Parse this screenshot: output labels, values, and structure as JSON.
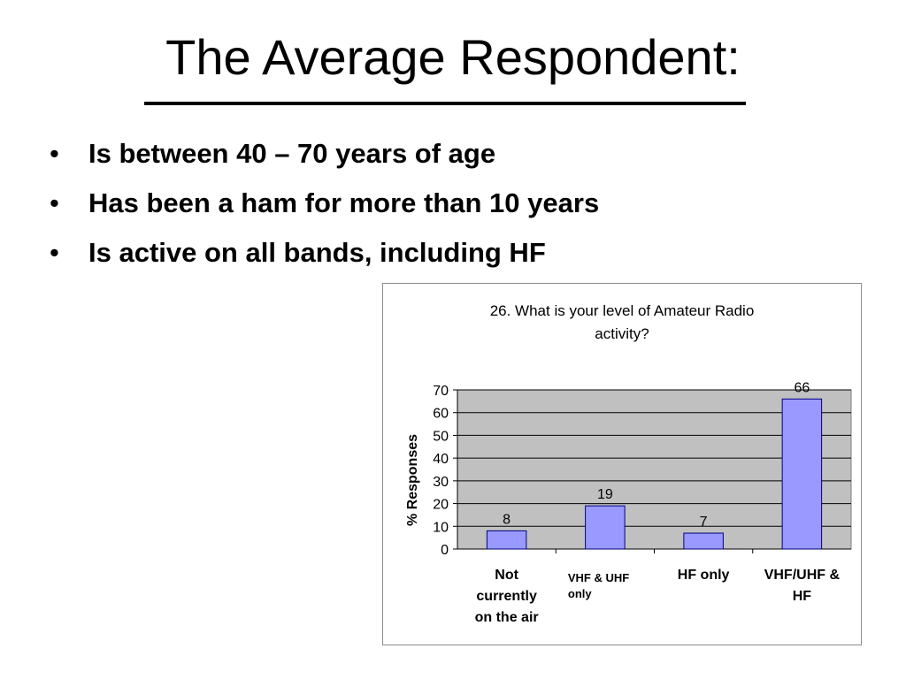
{
  "slide": {
    "title": "The Average Respondent:",
    "bullets": [
      "Is between 40 – 70 years of age",
      "Has been a ham for more than 10 years",
      "Is active on all bands, including HF"
    ],
    "bullet_glyph": "•"
  },
  "chart_data": {
    "type": "bar",
    "title_lines": [
      "26.  What is your level of Amateur Radio",
      "activity?"
    ],
    "ylabel": "% Responses",
    "xlabel": "",
    "ylim": [
      0,
      70
    ],
    "yticks": [
      0,
      10,
      20,
      30,
      40,
      50,
      60,
      70
    ],
    "categories": [
      [
        "Not",
        "currently",
        "on the air"
      ],
      [
        "VHF & UHF",
        "only"
      ],
      [
        "HF only"
      ],
      [
        "VHF/UHF &",
        "HF"
      ]
    ],
    "values": [
      8,
      19,
      7,
      66
    ],
    "data_labels": [
      "8",
      "19",
      "7",
      "66"
    ],
    "grid": true,
    "legend": "none",
    "colors": {
      "bar_fill": "#9999ff",
      "bar_stroke": "#000080",
      "plot_background": "#c0c0c0",
      "gridline": "#000000"
    }
  }
}
